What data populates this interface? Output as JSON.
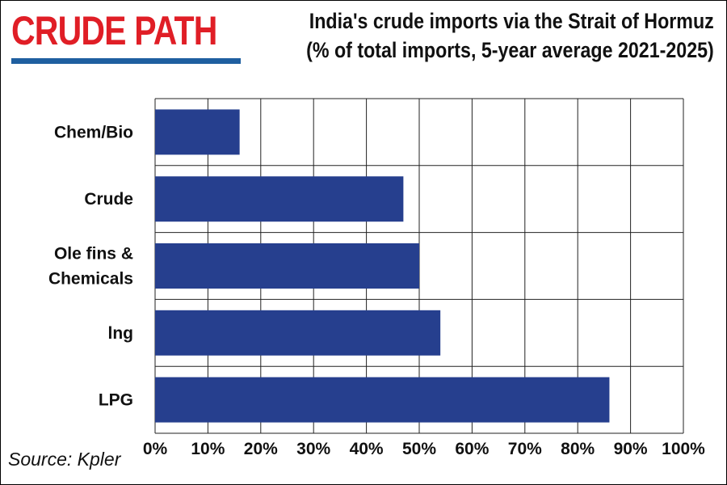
{
  "header": {
    "brand": "CRUDE PATH",
    "title_line1": "India's crude imports via the Strait of Hormuz",
    "title_line2": "(% of total imports, 5-year average 2021-2025)"
  },
  "footer": {
    "source": "Source: Kpler"
  },
  "colors": {
    "bar": "#263f8e",
    "brand": "#e01e26",
    "rule": "#1f5fa0",
    "grid": "#222222"
  },
  "chart_data": {
    "type": "bar",
    "orientation": "horizontal",
    "categories": [
      "Chem/Bio",
      "Crude",
      "Ole fins & Chemicals",
      "lng",
      "LPG"
    ],
    "category_lines": [
      [
        "Chem/Bio"
      ],
      [
        "Crude"
      ],
      [
        "Ole fins &",
        "Chemicals"
      ],
      [
        "lng"
      ],
      [
        "LPG"
      ]
    ],
    "values": [
      16,
      47,
      50,
      54,
      86
    ],
    "xlim": [
      0,
      100
    ],
    "xticks": [
      "0%",
      "10%",
      "20%",
      "30%",
      "40%",
      "50%",
      "60%",
      "70%",
      "80%",
      "90%",
      "100%"
    ],
    "grid": true,
    "title": "India's crude imports via the Strait of Hormuz",
    "subtitle": "(% of total imports, 5-year average 2021-2025)"
  }
}
